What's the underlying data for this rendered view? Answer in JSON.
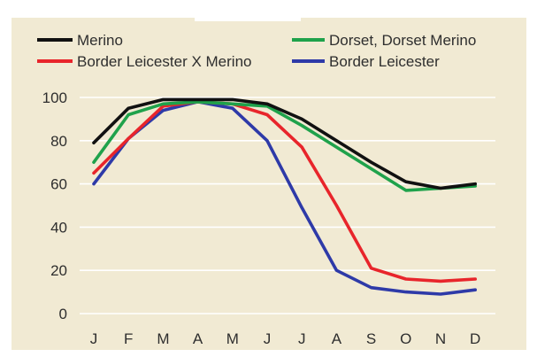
{
  "chart_data": {
    "type": "line",
    "title": "",
    "xlabel": "",
    "ylabel": "",
    "categories": [
      "J",
      "F",
      "M",
      "A",
      "M",
      "J",
      "J",
      "A",
      "S",
      "O",
      "N",
      "D"
    ],
    "yticks": [
      0,
      20,
      40,
      60,
      80,
      100
    ],
    "ylim": [
      0,
      100
    ],
    "grid": "horizontal",
    "legend_position": "top",
    "background_color": "#f1ead3",
    "series": [
      {
        "name": "Merino",
        "color": "#111111",
        "values": [
          79,
          95,
          99,
          99,
          99,
          97,
          90,
          80,
          70,
          61,
          58,
          60
        ]
      },
      {
        "name": "Dorset, Dorset Merino",
        "color": "#1fa24b",
        "values": [
          70,
          92,
          97,
          98,
          97,
          96,
          87,
          77,
          67,
          57,
          58,
          59
        ]
      },
      {
        "name": "Border Leicester X Merino",
        "color": "#e8252b",
        "values": [
          65,
          81,
          96,
          98,
          97,
          92,
          77,
          50,
          21,
          16,
          15,
          16
        ]
      },
      {
        "name": "Border Leicester",
        "color": "#2e3aa8",
        "values": [
          60,
          81,
          94,
          98,
          95,
          80,
          49,
          20,
          12,
          10,
          9,
          11
        ]
      }
    ],
    "legend": [
      "Merino",
      "Dorset, Dorset Merino",
      "Border Leicester X Merino",
      "Border Leicester"
    ]
  }
}
